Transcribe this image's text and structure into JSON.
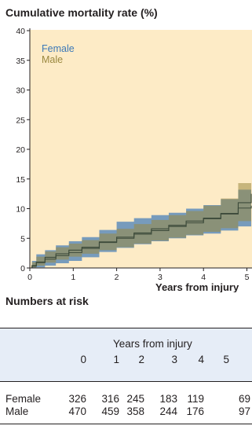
{
  "figure": {
    "title": "Cumulative mortality rate (%)",
    "risk_heading": "Numbers at risk"
  },
  "chart_data": {
    "type": "line",
    "title": "Cumulative mortality rate (%)",
    "xlabel": "Years from injury",
    "ylabel": "",
    "xlim": [
      0,
      5.1
    ],
    "ylim": [
      0,
      40
    ],
    "x_ticks": [
      "0",
      "1",
      "2",
      "3",
      "4",
      "5"
    ],
    "y_ticks": [
      "0",
      "5",
      "10",
      "15",
      "20",
      "25",
      "30",
      "35",
      "40"
    ],
    "grid": false,
    "legend_position": "top-left",
    "background_color": "#fdebc6",
    "series": [
      {
        "name": "Female",
        "color": "#3d79b8",
        "x": [
          0,
          0.05,
          0.15,
          0.35,
          0.6,
          0.9,
          1.2,
          1.6,
          2.0,
          2.4,
          2.8,
          3.2,
          3.6,
          4.0,
          4.4,
          4.8,
          5.1
        ],
        "y": [
          0,
          0.3,
          0.9,
          1.5,
          2.1,
          2.6,
          3.3,
          4.3,
          5.2,
          5.9,
          6.6,
          7.2,
          7.9,
          8.4,
          9.2,
          10.1,
          10.5
        ],
        "lower": [
          0,
          0,
          0.1,
          0.4,
          0.8,
          1.2,
          1.8,
          2.7,
          3.4,
          4.0,
          4.5,
          5.0,
          5.5,
          5.8,
          6.3,
          7.0,
          7.4
        ],
        "upper": [
          0,
          1.2,
          2.3,
          3.0,
          3.8,
          4.5,
          5.2,
          6.4,
          7.8,
          8.4,
          8.9,
          9.3,
          10.0,
          10.6,
          11.6,
          13.2,
          14.0
        ]
      },
      {
        "name": "Male",
        "color": "#9a8840",
        "x": [
          0,
          0.05,
          0.15,
          0.35,
          0.6,
          0.9,
          1.2,
          1.6,
          2.0,
          2.4,
          2.8,
          3.2,
          3.6,
          4.0,
          4.4,
          4.8,
          5.1
        ],
        "y": [
          0,
          0.4,
          1.0,
          1.8,
          2.4,
          3.0,
          3.5,
          4.4,
          5.0,
          5.7,
          6.3,
          7.0,
          7.6,
          8.3,
          9.1,
          11.0,
          12.5
        ],
        "lower": [
          0,
          0.1,
          0.4,
          0.9,
          1.4,
          1.9,
          2.4,
          3.0,
          3.5,
          4.1,
          4.6,
          5.1,
          5.6,
          6.1,
          6.7,
          7.9,
          9.0
        ],
        "upper": [
          0,
          1.0,
          1.9,
          2.8,
          3.5,
          4.1,
          4.7,
          5.8,
          6.6,
          7.4,
          8.1,
          8.9,
          9.6,
          10.5,
          11.7,
          14.3,
          16.5
        ]
      }
    ]
  },
  "risk_table": {
    "header_title": "Years from injury",
    "columns": [
      "0",
      "1",
      "2",
      "3",
      "4",
      "5"
    ],
    "rows": [
      {
        "label": "Female",
        "values": [
          "326",
          "316",
          "245",
          "183",
          "119",
          "69"
        ]
      },
      {
        "label": "Male",
        "values": [
          "470",
          "459",
          "358",
          "244",
          "176",
          "97"
        ]
      }
    ]
  }
}
